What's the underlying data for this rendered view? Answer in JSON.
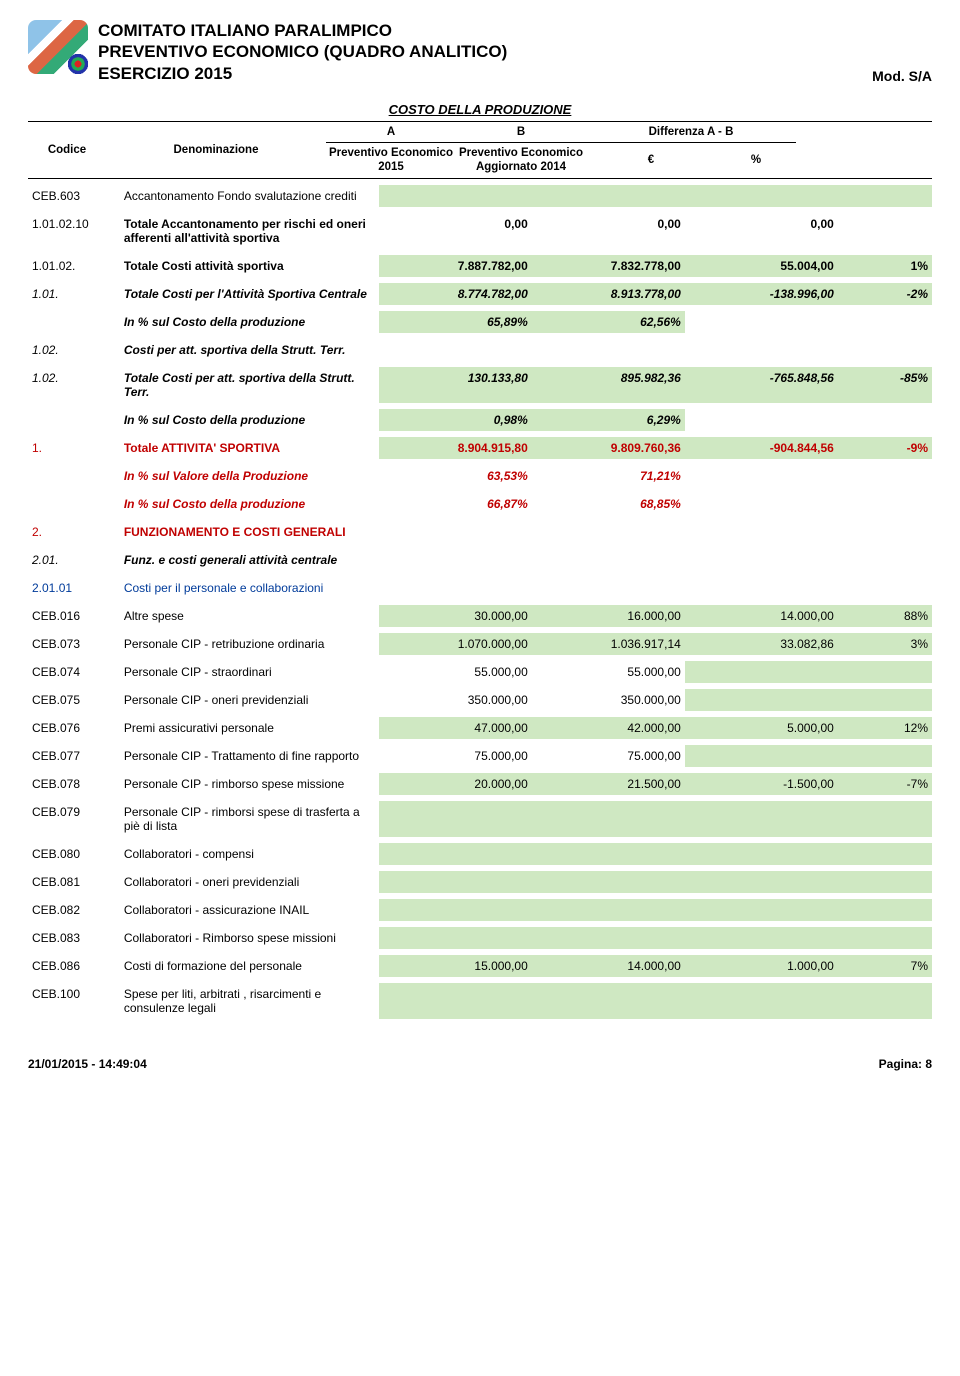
{
  "header": {
    "line1": "COMITATO ITALIANO PARALIMPICO",
    "line2": "PREVENTIVO ECONOMICO (QUADRO ANALITICO)",
    "line3": "ESERCIZIO 2015",
    "mod": "Mod. S/A"
  },
  "section_title": "COSTO DELLA PRODUZIONE",
  "columns": {
    "codice": "Codice",
    "denom": "Denominazione",
    "a": "A",
    "b": "B",
    "diff": "Differenza A - B",
    "a_sub": "Preventivo Economico 2015",
    "b_sub": "Preventivo Economico Aggiornato 2014",
    "eur": "€",
    "pct": "%"
  },
  "rows": [
    {
      "code": "CEB.603",
      "denom": "Accantonamento Fondo svalutazione crediti",
      "a": "",
      "b": "",
      "e": "",
      "p": "",
      "hl": true
    },
    {
      "code": "1.01.02.10",
      "denom": "Totale Accantonamento per rischi ed oneri afferenti all'attività sportiva",
      "a": "0,00",
      "b": "0,00",
      "e": "0,00",
      "p": "",
      "bold": true
    },
    {
      "code": "1.01.02.",
      "denom": "Totale Costi attività sportiva",
      "a": "7.887.782,00",
      "b": "7.832.778,00",
      "e": "55.004,00",
      "p": "1%",
      "bold": true,
      "hl_nums": true
    },
    {
      "code": "1.01.",
      "denom": "Totale Costi per l'Attività Sportiva Centrale",
      "a": "8.774.782,00",
      "b": "8.913.778,00",
      "e": "-138.996,00",
      "p": "-2%",
      "bold": true,
      "ital": true,
      "hl_nums": true
    },
    {
      "code": "",
      "denom": "In % sul Costo della produzione",
      "a": "65,89%",
      "b": "62,56%",
      "e": "",
      "p": "",
      "bold": true,
      "ital": true,
      "hl_ab": true
    },
    {
      "code": "1.02.",
      "denom": "Costi per att. sportiva della Strutt. Terr.",
      "a": "",
      "b": "",
      "e": "",
      "p": "",
      "bold": true,
      "ital": true
    },
    {
      "code": "1.02.",
      "denom": "Totale Costi per att. sportiva della Strutt. Terr.",
      "a": "130.133,80",
      "b": "895.982,36",
      "e": "-765.848,56",
      "p": "-85%",
      "bold": true,
      "ital": true,
      "hl_nums": true
    },
    {
      "code": "",
      "denom": "In % sul Costo della produzione",
      "a": "0,98%",
      "b": "6,29%",
      "e": "",
      "p": "",
      "bold": true,
      "ital": true,
      "hl_ab": true
    },
    {
      "code": "1.",
      "denom": "Totale ATTIVITA' SPORTIVA",
      "a": "8.904.915,80",
      "b": "9.809.760,36",
      "e": "-904.844,56",
      "p": "-9%",
      "bold": true,
      "red": true,
      "hl_nums": true
    },
    {
      "code": "",
      "denom": "In % sul Valore della Produzione",
      "a": "63,53%",
      "b": "71,21%",
      "e": "",
      "p": "",
      "bold": true,
      "ital": true,
      "red": true
    },
    {
      "code": "",
      "denom": "In % sul Costo della produzione",
      "a": "66,87%",
      "b": "68,85%",
      "e": "",
      "p": "",
      "bold": true,
      "ital": true,
      "red": true
    },
    {
      "code": "2.",
      "denom": "FUNZIONAMENTO E COSTI GENERALI",
      "a": "",
      "b": "",
      "e": "",
      "p": "",
      "bold": true,
      "red": true
    },
    {
      "code": "2.01.",
      "denom": "Funz. e costi generali attività centrale",
      "a": "",
      "b": "",
      "e": "",
      "p": "",
      "bold": true,
      "ital": true
    },
    {
      "code": "2.01.01",
      "denom": "Costi per il personale e collaborazioni",
      "a": "",
      "b": "",
      "e": "",
      "p": "",
      "blue": true
    },
    {
      "code": "CEB.016",
      "denom": "Altre spese",
      "a": "30.000,00",
      "b": "16.000,00",
      "e": "14.000,00",
      "p": "88%",
      "hl_nums": true
    },
    {
      "code": "CEB.073",
      "denom": "Personale CIP - retribuzione ordinaria",
      "a": "1.070.000,00",
      "b": "1.036.917,14",
      "e": "33.082,86",
      "p": "3%",
      "hl_nums": true
    },
    {
      "code": "CEB.074",
      "denom": "Personale CIP - straordinari",
      "a": "55.000,00",
      "b": "55.000,00",
      "e": "",
      "p": "",
      "hl_ep": true
    },
    {
      "code": "CEB.075",
      "denom": "Personale CIP - oneri previdenziali",
      "a": "350.000,00",
      "b": "350.000,00",
      "e": "",
      "p": "",
      "hl_ep": true
    },
    {
      "code": "CEB.076",
      "denom": "Premi assicurativi personale",
      "a": "47.000,00",
      "b": "42.000,00",
      "e": "5.000,00",
      "p": "12%",
      "hl_nums": true
    },
    {
      "code": "CEB.077",
      "denom": "Personale CIP - Trattamento di fine rapporto",
      "a": "75.000,00",
      "b": "75.000,00",
      "e": "",
      "p": "",
      "hl_ep": true
    },
    {
      "code": "CEB.078",
      "denom": "Personale CIP - rimborso spese missione",
      "a": "20.000,00",
      "b": "21.500,00",
      "e": "-1.500,00",
      "p": "-7%",
      "hl_nums": true
    },
    {
      "code": "CEB.079",
      "denom": "Personale CIP - rimborsi spese di trasferta a piè di lista",
      "a": "",
      "b": "",
      "e": "",
      "p": "",
      "hl": true
    },
    {
      "code": "CEB.080",
      "denom": "Collaboratori - compensi",
      "a": "",
      "b": "",
      "e": "",
      "p": "",
      "hl": true
    },
    {
      "code": "CEB.081",
      "denom": "Collaboratori - oneri previdenziali",
      "a": "",
      "b": "",
      "e": "",
      "p": "",
      "hl": true
    },
    {
      "code": "CEB.082",
      "denom": "Collaboratori - assicurazione INAIL",
      "a": "",
      "b": "",
      "e": "",
      "p": "",
      "hl": true
    },
    {
      "code": "CEB.083",
      "denom": "Collaboratori - Rimborso spese missioni",
      "a": "",
      "b": "",
      "e": "",
      "p": "",
      "hl": true
    },
    {
      "code": "CEB.086",
      "denom": "Costi di formazione del personale",
      "a": "15.000,00",
      "b": "14.000,00",
      "e": "1.000,00",
      "p": "7%",
      "hl_nums": true
    },
    {
      "code": "CEB.100",
      "denom": "Spese per liti, arbitrati , risarcimenti e consulenze legali",
      "a": "",
      "b": "",
      "e": "",
      "p": "",
      "hl": true
    }
  ],
  "footer": {
    "left": "21/01/2015 - 14:49:04",
    "right": "Pagina: 8"
  },
  "colors": {
    "highlight": "#cfe8c2",
    "red": "#c00000",
    "blue": "#003b9a"
  }
}
